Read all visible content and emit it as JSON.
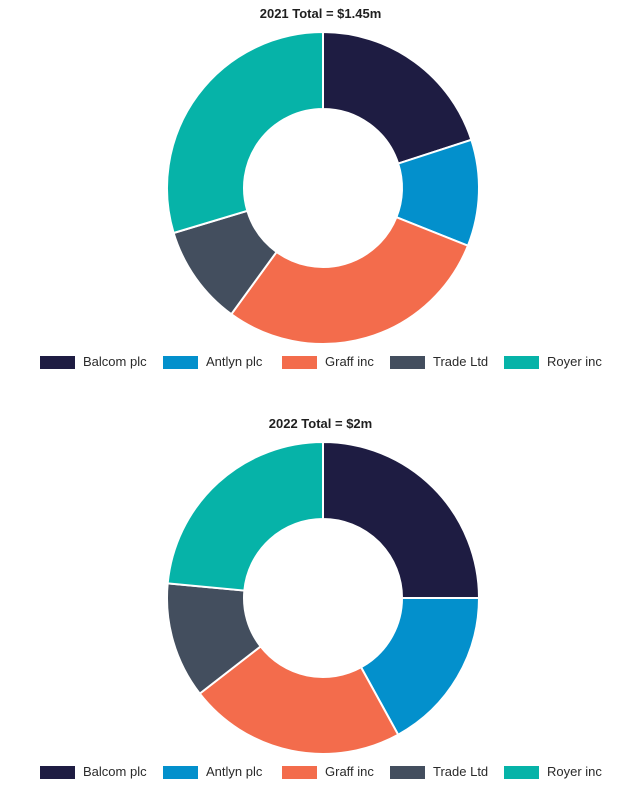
{
  "colors": {
    "Balcom plc": "#1e1c42",
    "Antlyn plc": "#0390cc",
    "Graff inc": "#f36c4c",
    "Trade Ltd": "#434e5e",
    "Royer inc": "#06b3a8"
  },
  "chart_data": [
    {
      "type": "pie",
      "variant": "donut",
      "title": "2021 Total = $1.45m",
      "categories": [
        "Balcom plc",
        "Antlyn plc",
        "Graff inc",
        "Trade Ltd",
        "Royer inc"
      ],
      "values": [
        0.29,
        0.16,
        0.42,
        0.15,
        0.43
      ],
      "legend_position": "bottom"
    },
    {
      "type": "pie",
      "variant": "donut",
      "title": "2022 Total = $2m",
      "categories": [
        "Balcom plc",
        "Antlyn plc",
        "Graff inc",
        "Trade Ltd",
        "Royer inc"
      ],
      "values": [
        0.5,
        0.34,
        0.45,
        0.24,
        0.47
      ],
      "legend_position": "bottom"
    }
  ]
}
